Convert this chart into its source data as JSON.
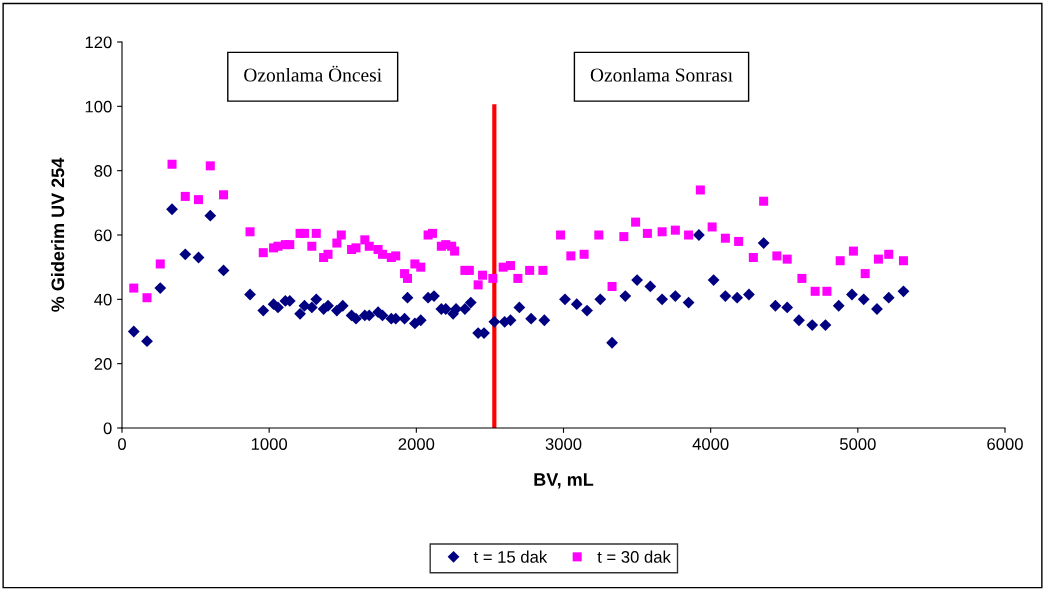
{
  "chart_data": {
    "type": "scatter",
    "xlabel": "BV, mL",
    "ylabel": "% Giderim UV 254",
    "xlim": [
      0,
      6000
    ],
    "xticks": [
      0,
      1000,
      2000,
      3000,
      4000,
      5000,
      6000
    ],
    "ylim": [
      0,
      120
    ],
    "yticks": [
      0,
      20,
      40,
      60,
      80,
      100,
      120
    ],
    "grid": false,
    "legend": "bottom",
    "annotations": [
      "Ozonlama Öncesi",
      "Ozonlama Sonrası"
    ],
    "ref_lines": [
      {
        "axis": "x",
        "value": 2530,
        "color": "#ff0000",
        "line_style": "solid",
        "label": null
      }
    ],
    "series": [
      {
        "name": "t = 15 dak",
        "color": "#000080",
        "marker": "diamond",
        "x": [
          80,
          170,
          260,
          340,
          430,
          520,
          600,
          690,
          870,
          960,
          1030,
          1060,
          1110,
          1140,
          1210,
          1240,
          1290,
          1320,
          1370,
          1400,
          1460,
          1500,
          1560,
          1590,
          1650,
          1680,
          1740,
          1770,
          1830,
          1860,
          1920,
          1940,
          1990,
          2030,
          2080,
          2120,
          2170,
          2200,
          2250,
          2270,
          2330,
          2370,
          2420,
          2460,
          2530,
          2600,
          2640,
          2700,
          2780,
          2870,
          3010,
          3090,
          3160,
          3250,
          3330,
          3420,
          3500,
          3590,
          3670,
          3760,
          3850,
          3920,
          4020,
          4100,
          4180,
          4260,
          4360,
          4440,
          4520,
          4600,
          4690,
          4780,
          4870,
          4960,
          5040,
          5130,
          5210,
          5310
        ],
        "values": [
          30,
          27,
          43.5,
          68,
          54,
          53,
          66,
          49,
          41.5,
          36.5,
          38.5,
          37.5,
          39.5,
          39.5,
          35.5,
          38,
          37.5,
          40,
          37,
          38,
          36.5,
          38,
          35,
          34,
          35,
          35,
          36,
          35,
          34,
          34,
          34,
          40.5,
          32.5,
          33.5,
          40.5,
          41,
          37,
          37,
          35.5,
          37,
          37,
          39,
          29.5,
          29.5,
          33,
          33,
          33.5,
          37.5,
          34,
          33.5,
          40,
          38.5,
          36.5,
          40,
          26.5,
          41,
          46,
          44,
          40,
          41,
          39,
          60,
          46,
          41,
          40.5,
          41.5,
          57.5,
          38,
          37.5,
          33.5,
          32,
          32,
          38,
          41.5,
          40,
          37,
          40.5,
          42.5
        ]
      },
      {
        "name": "t = 30 dak",
        "color": "#ff00ff",
        "marker": "square",
        "x": [
          80,
          170,
          260,
          340,
          430,
          520,
          600,
          690,
          870,
          960,
          1030,
          1060,
          1110,
          1140,
          1210,
          1240,
          1290,
          1320,
          1370,
          1400,
          1460,
          1490,
          1560,
          1590,
          1650,
          1680,
          1740,
          1770,
          1830,
          1860,
          1920,
          1940,
          1990,
          2030,
          2080,
          2110,
          2170,
          2200,
          2240,
          2260,
          2330,
          2360,
          2420,
          2450,
          2520,
          2590,
          2640,
          2690,
          2770,
          2860,
          2980,
          3050,
          3140,
          3240,
          3330,
          3410,
          3490,
          3570,
          3670,
          3760,
          3850,
          3930,
          4010,
          4100,
          4190,
          4290,
          4360,
          4450,
          4520,
          4620,
          4710,
          4790,
          4880,
          4970,
          5050,
          5140,
          5210,
          5310
        ],
        "values": [
          43.5,
          40.5,
          51,
          82,
          72,
          71,
          81.5,
          72.5,
          61,
          54.5,
          56,
          56.5,
          57,
          57,
          60.5,
          60.5,
          56.5,
          60.5,
          53,
          54,
          57.5,
          60,
          55.5,
          56,
          58.5,
          56.5,
          55.5,
          54,
          53,
          53.5,
          48,
          46.5,
          51,
          50,
          60,
          60.5,
          56.5,
          57,
          56.5,
          55,
          49,
          49,
          44.5,
          47.5,
          46.5,
          50,
          50.5,
          46.5,
          49,
          49,
          60,
          53.5,
          54,
          60,
          44,
          59.5,
          64,
          60.5,
          61,
          61.5,
          60,
          74,
          62.5,
          59,
          58,
          53,
          70.5,
          53.5,
          52.5,
          46.5,
          42.5,
          42.5,
          52,
          55,
          48,
          52.5,
          54,
          52
        ]
      }
    ]
  }
}
